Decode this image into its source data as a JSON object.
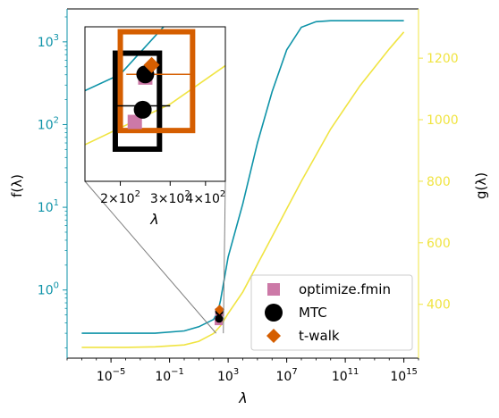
{
  "colors": {
    "f_curve": "#0e93a8",
    "g_curve": "#f0e442",
    "optimize_fmin": "#cc79a7",
    "mtc": "#000000",
    "t_walk": "#d55e00",
    "connector": "#808080"
  },
  "chart_data": {
    "type": "line",
    "title": "",
    "xlabel": "λ",
    "ylabel_left": "f(λ)",
    "ylabel_right": "g(λ)",
    "xscale": "log",
    "yscale_left": "log",
    "yscale_right": "linear",
    "xlim": [
      1e-08,
      1e+16
    ],
    "ylim_left": [
      0.15,
      2500
    ],
    "ylim_right": [
      225,
      1360
    ],
    "x_ticks": [
      "10^-5",
      "10^-1",
      "10^3",
      "10^7",
      "10^11",
      "10^15"
    ],
    "y_left_ticks": [
      "10^0",
      "10^1",
      "10^2",
      "10^3"
    ],
    "y_right_ticks": [
      "400",
      "600",
      "800",
      "1000",
      "1200"
    ],
    "grid": false,
    "legend_position": "lower-right",
    "series": [
      {
        "name": "f",
        "axis": "left",
        "color": "#0e93a8",
        "x": [
          1e-07,
          0.0001,
          0.01,
          1,
          10,
          100,
          200,
          300,
          1000,
          10000,
          100000,
          1000000,
          10000000,
          100000000,
          1000000000,
          10000000000,
          1000000000000.0,
          1000000000000000.0
        ],
        "y": [
          0.3,
          0.3,
          0.3,
          0.32,
          0.36,
          0.44,
          0.55,
          0.75,
          2.5,
          11,
          60,
          250,
          800,
          1500,
          1750,
          1800,
          1800,
          1800
        ]
      },
      {
        "name": "g",
        "axis": "right",
        "color": "#f0e442",
        "x": [
          1e-07,
          0.0001,
          0.01,
          1,
          10,
          100,
          300,
          1000,
          10000,
          100000,
          1000000,
          10000000,
          100000000,
          10000000000.0,
          1000000000000.0,
          100000000000000.0,
          1000000000000000.0
        ],
        "y": [
          260,
          260,
          262,
          268,
          280,
          305,
          330,
          370,
          440,
          530,
          620,
          710,
          800,
          970,
          1110,
          1230,
          1285
        ]
      }
    ],
    "markers": [
      {
        "name": "optimize.fmin",
        "shape": "square",
        "color": "#cc79a7",
        "points": [
          {
            "x": 225,
            "y": 0.42
          },
          {
            "x": 245,
            "y": 0.54
          }
        ]
      },
      {
        "name": "MTC",
        "shape": "circle",
        "color": "#000000",
        "points": [
          {
            "x": 240,
            "y": 0.45
          },
          {
            "x": 245,
            "y": 0.55
          }
        ]
      },
      {
        "name": "t-walk",
        "shape": "diamond",
        "color": "#d55e00",
        "points": [
          {
            "x": 258,
            "y": 0.58
          }
        ]
      }
    ],
    "inset": {
      "xscale": "log",
      "xlim": [
        150,
        470
      ],
      "ylim": [
        0.3,
        0.72
      ],
      "xlabel": "λ",
      "x_ticks": [
        "2×10^2",
        "3×10^2",
        "4×10^2"
      ],
      "intervals": [
        {
          "series": "MTC",
          "color": "#000000",
          "xlim": [
            192,
            275
          ],
          "ylim": [
            0.36,
            0.62
          ]
        },
        {
          "series": "t-walk",
          "color": "#d55e00",
          "xlim": [
            200,
            360
          ],
          "ylim": [
            0.4,
            0.7
          ]
        }
      ]
    }
  }
}
